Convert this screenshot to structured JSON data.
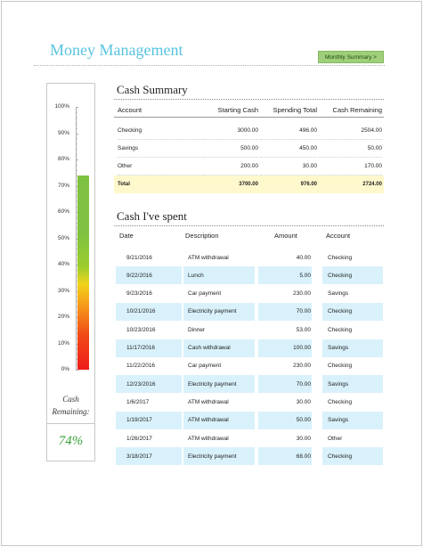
{
  "title": "Money Management",
  "summary_button": "Monthly Summary >",
  "gauge": {
    "ticks": [
      "100%",
      "90%",
      "80%",
      "70%",
      "60%",
      "50%",
      "40%",
      "30%",
      "20%",
      "10%",
      "0%"
    ],
    "caption_line1": "Cash",
    "caption_line2": "Remaining:",
    "value_text": "74%",
    "level_percent": 74
  },
  "cash_summary": {
    "title": "Cash Summary",
    "headers": {
      "account": "Account",
      "starting": "Starting Cash",
      "spending": "Spending Total",
      "remaining": "Cash Remaining"
    },
    "rows": [
      {
        "account": "Checking",
        "starting": "3000.00",
        "spending": "496.00",
        "remaining": "2504.00"
      },
      {
        "account": "Savings",
        "starting": "500.00",
        "spending": "450.00",
        "remaining": "50.00"
      },
      {
        "account": "Other",
        "starting": "200.00",
        "spending": "30.00",
        "remaining": "170.00"
      }
    ],
    "total": {
      "account": "Total",
      "starting": "3700.00",
      "spending": "976.00",
      "remaining": "2724.00"
    }
  },
  "cash_spent": {
    "title": "Cash I've spent",
    "headers": {
      "date": "Date",
      "description": "Description",
      "amount": "Amount",
      "account": "Account"
    },
    "rows": [
      {
        "date": "9/21/2016",
        "description": "ATM withdrawal",
        "amount": "40.00",
        "account": "Checking"
      },
      {
        "date": "9/22/2016",
        "description": "Lunch",
        "amount": "5.00",
        "account": "Checking"
      },
      {
        "date": "9/23/2016",
        "description": "Car payment",
        "amount": "230.00",
        "account": "Savings"
      },
      {
        "date": "10/21/2016",
        "description": "Electricity payment",
        "amount": "70.00",
        "account": "Checking"
      },
      {
        "date": "10/23/2016",
        "description": "Dinner",
        "amount": "53.00",
        "account": "Checking"
      },
      {
        "date": "11/17/2016",
        "description": "Cash withdrawal",
        "amount": "100.00",
        "account": "Savings"
      },
      {
        "date": "11/22/2016",
        "description": "Car payment",
        "amount": "230.00",
        "account": "Checking"
      },
      {
        "date": "12/23/2016",
        "description": "Electricity payment",
        "amount": "70.00",
        "account": "Savings"
      },
      {
        "date": "1/6/2017",
        "description": "ATM withdrawal",
        "amount": "30.00",
        "account": "Checking"
      },
      {
        "date": "1/19/2017",
        "description": "ATM withdrawal",
        "amount": "50.00",
        "account": "Savings"
      },
      {
        "date": "1/26/2017",
        "description": "ATM withdrawal",
        "amount": "30.00",
        "account": "Other"
      },
      {
        "date": "3/18/2017",
        "description": "Electricity payment",
        "amount": "68.00",
        "account": "Checking"
      }
    ]
  }
}
